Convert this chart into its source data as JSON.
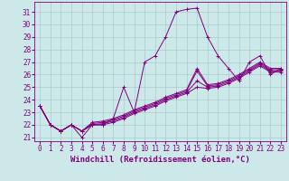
{
  "xlabel": "Windchill (Refroidissement éolien,°C)",
  "bg_color": "#cce8e8",
  "line_color": "#800080",
  "xlim": [
    -0.5,
    23.5
  ],
  "ylim": [
    20.7,
    31.8
  ],
  "yticks": [
    21,
    22,
    23,
    24,
    25,
    26,
    27,
    28,
    29,
    30,
    31
  ],
  "xticks": [
    0,
    1,
    2,
    3,
    4,
    5,
    6,
    7,
    8,
    9,
    10,
    11,
    12,
    13,
    14,
    15,
    16,
    17,
    18,
    19,
    20,
    21,
    22,
    23
  ],
  "series": [
    [
      23.5,
      22.0,
      21.5,
      22.0,
      21.0,
      22.0,
      22.0,
      22.5,
      25.0,
      23.0,
      27.0,
      27.5,
      29.0,
      31.0,
      31.2,
      31.3,
      29.0,
      27.5,
      26.5,
      25.5,
      27.0,
      27.5,
      26.0,
      26.5
    ],
    [
      23.5,
      22.0,
      21.5,
      22.0,
      21.5,
      22.2,
      22.3,
      22.5,
      22.8,
      23.2,
      23.5,
      23.8,
      24.2,
      24.5,
      24.8,
      26.5,
      25.2,
      25.3,
      25.6,
      26.0,
      26.5,
      27.0,
      26.5,
      26.5
    ],
    [
      23.5,
      22.0,
      21.5,
      22.0,
      21.5,
      22.1,
      22.2,
      22.4,
      22.7,
      23.1,
      23.4,
      23.7,
      24.1,
      24.4,
      24.7,
      26.3,
      25.1,
      25.2,
      25.5,
      25.9,
      26.4,
      26.9,
      26.4,
      26.4
    ],
    [
      23.5,
      22.0,
      21.5,
      22.0,
      21.5,
      22.0,
      22.1,
      22.3,
      22.6,
      23.0,
      23.3,
      23.6,
      24.0,
      24.3,
      24.6,
      25.5,
      25.0,
      25.1,
      25.4,
      25.8,
      26.3,
      26.8,
      26.3,
      26.3
    ],
    [
      23.5,
      22.0,
      21.5,
      22.0,
      21.5,
      22.0,
      22.0,
      22.2,
      22.5,
      22.9,
      23.2,
      23.5,
      23.9,
      24.2,
      24.5,
      25.0,
      24.9,
      25.0,
      25.3,
      25.7,
      26.2,
      26.7,
      26.2,
      26.2
    ]
  ],
  "grid_color": "#aacccc",
  "tick_fontsize": 5.5,
  "xlabel_fontsize": 6.5
}
